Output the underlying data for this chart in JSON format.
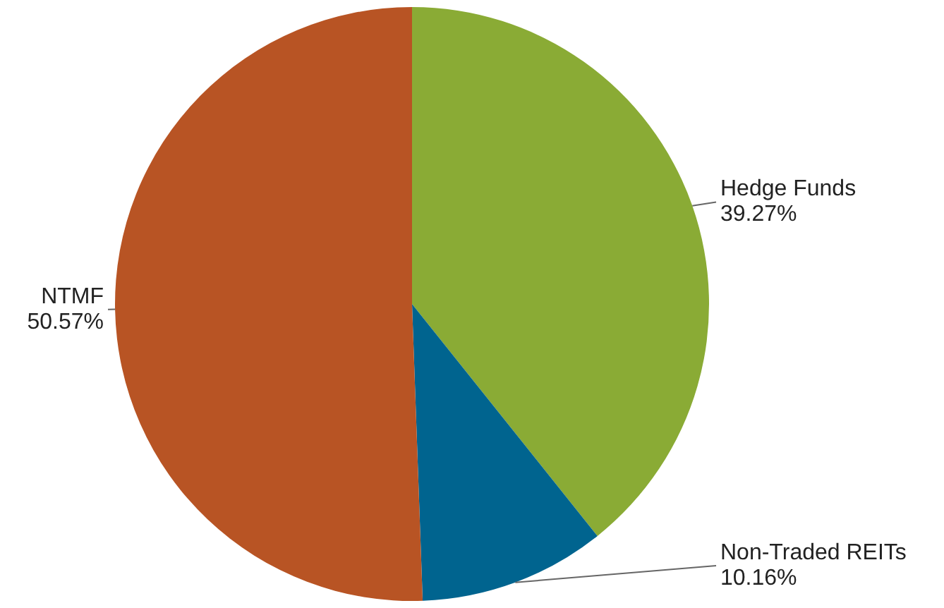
{
  "chart_data": {
    "type": "pie",
    "categories": [
      "Hedge Funds",
      "Non-Traded REITs",
      "NTMF"
    ],
    "values": [
      39.27,
      10.16,
      50.57
    ],
    "value_labels": [
      "39.27%",
      "10.16%",
      "50.57%"
    ],
    "colors": [
      "#8aab35",
      "#00648f",
      "#b85424"
    ],
    "legend": false
  }
}
